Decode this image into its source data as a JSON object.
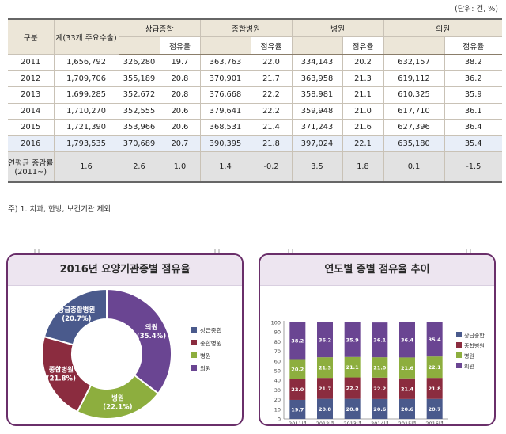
{
  "unit_note": "(단위: 건, %)",
  "table": {
    "header": {
      "category": "구분",
      "total": "계(33개 주요수술)",
      "tertiary": "상급종합",
      "general": "종합병원",
      "hospital": "병원",
      "clinic": "의원",
      "share": "점유율"
    },
    "rows": [
      {
        "year": "2011",
        "total": "1,656,792",
        "tertiary": "326,280",
        "tertiary_share": "19.7",
        "general": "363,763",
        "general_share": "22.0",
        "hospital": "334,143",
        "hospital_share": "20.2",
        "clinic": "632,157",
        "clinic_share": "38.2"
      },
      {
        "year": "2012",
        "total": "1,709,706",
        "tertiary": "355,189",
        "tertiary_share": "20.8",
        "general": "370,901",
        "general_share": "21.7",
        "hospital": "363,958",
        "hospital_share": "21.3",
        "clinic": "619,112",
        "clinic_share": "36.2"
      },
      {
        "year": "2013",
        "total": "1,699,285",
        "tertiary": "352,672",
        "tertiary_share": "20.8",
        "general": "376,668",
        "general_share": "22.2",
        "hospital": "358,981",
        "hospital_share": "21.1",
        "clinic": "610,325",
        "clinic_share": "35.9"
      },
      {
        "year": "2014",
        "total": "1,710,270",
        "tertiary": "352,555",
        "tertiary_share": "20.6",
        "general": "379,641",
        "general_share": "22.2",
        "hospital": "359,948",
        "hospital_share": "21.0",
        "clinic": "617,710",
        "clinic_share": "36.1"
      },
      {
        "year": "2015",
        "total": "1,721,390",
        "tertiary": "353,966",
        "tertiary_share": "20.6",
        "general": "368,531",
        "general_share": "21.4",
        "hospital": "371,243",
        "hospital_share": "21.6",
        "clinic": "627,396",
        "clinic_share": "36.4"
      },
      {
        "year": "2016",
        "total": "1,793,535",
        "tertiary": "370,689",
        "tertiary_share": "20.7",
        "general": "390,395",
        "general_share": "21.8",
        "hospital": "397,024",
        "hospital_share": "22.1",
        "clinic": "635,180",
        "clinic_share": "35.4"
      }
    ],
    "avg_row": {
      "label_line1": "연평균 증감률",
      "label_line2": "(2011~)",
      "total": "1.6",
      "tertiary": "2.6",
      "tertiary_share": "1.0",
      "general": "1.4",
      "general_share": "-0.2",
      "hospital": "3.5",
      "hospital_share": "1.8",
      "clinic": "0.1",
      "clinic_share": "-1.5"
    }
  },
  "footnote": "주) 1. 치과, 한방, 보건기관 제외",
  "colors": {
    "tertiary": "#4a5a8c",
    "general": "#8b2c3f",
    "hospital": "#8dae3e",
    "clinic": "#6a4592"
  },
  "chart_data": [
    {
      "type": "pie",
      "title": "2016년 요양기관종별 점유율",
      "categories": [
        "상급종합",
        "종합병원",
        "병원",
        "의원"
      ],
      "values": [
        20.7,
        21.8,
        22.1,
        35.4
      ],
      "slice_labels": [
        "상급종합병원\n(20.7%)",
        "종합병원\n(21.8%)",
        "병원\n(22.1%)",
        "의원\n(35.4%)"
      ],
      "legend": [
        "상급종합",
        "종합병원",
        "병원",
        "의원"
      ],
      "legend_position": "right",
      "donut": true
    },
    {
      "type": "bar",
      "stacked": true,
      "title": "연도별 종별 점유율 추이",
      "categories": [
        "2011년",
        "2012년",
        "2013년",
        "2014년",
        "2015년",
        "2016년"
      ],
      "series": [
        {
          "name": "상급종합",
          "values": [
            19.7,
            20.8,
            20.8,
            20.6,
            20.6,
            20.7
          ]
        },
        {
          "name": "종합병원",
          "values": [
            22.0,
            21.7,
            22.2,
            22.2,
            21.4,
            21.8
          ]
        },
        {
          "name": "병원",
          "values": [
            20.2,
            21.3,
            21.1,
            21.0,
            21.6,
            22.1
          ]
        },
        {
          "name": "의원",
          "values": [
            38.2,
            36.2,
            35.9,
            36.1,
            36.4,
            35.4
          ]
        }
      ],
      "ylim": [
        0,
        100
      ],
      "yticks": [
        0,
        10,
        20,
        30,
        40,
        50,
        60,
        70,
        80,
        90,
        100
      ],
      "legend_position": "right"
    }
  ]
}
